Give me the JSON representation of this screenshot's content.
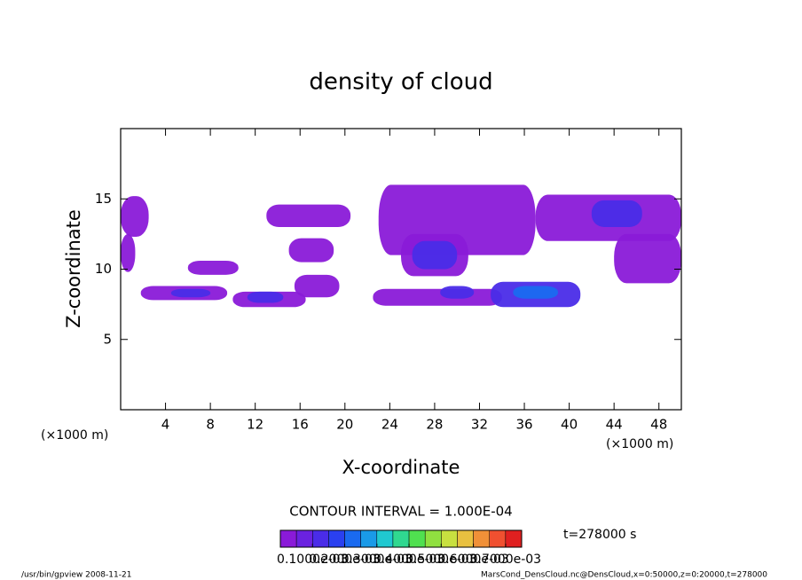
{
  "chart_data": {
    "type": "contour",
    "title": "density of cloud",
    "xlabel": "X-coordinate",
    "ylabel": "Z-coordinate",
    "xunit_left": "(×1000 m)",
    "xunit_right": "(×1000 m)",
    "xlim": [
      0,
      50
    ],
    "xticks": [
      4,
      8,
      12,
      16,
      20,
      24,
      28,
      32,
      36,
      40,
      44,
      48
    ],
    "ylim": [
      0,
      20
    ],
    "yticks": [
      5,
      10,
      15
    ],
    "contour_interval": "CONTOUR INTERVAL = 1.000E-04",
    "time": "t=278000 s",
    "footer_left": "/usr/bin/gpview  2008-11-21",
    "footer_right": "MarsCond_DensCloud.nc@DensCloud,x=0:50000,z=0:20000,t=278000",
    "colorbar_lim": [
      0,
      0.00075
    ],
    "colorbar_colors": [
      "#8a1ad8",
      "#6a22e0",
      "#4a2ce8",
      "#2a40f0",
      "#1a6af0",
      "#1a9ae8",
      "#20c8d0",
      "#30d890",
      "#50e050",
      "#90e040",
      "#c8e040",
      "#e8c040",
      "#f09038",
      "#f05030",
      "#e02020"
    ],
    "colorbar_ticks": [
      {
        "value": 0.0001,
        "label": "0.1000e-03"
      },
      {
        "value": 0.0002,
        "label": "0.2000e-03"
      },
      {
        "value": 0.0003,
        "label": "0.3000e-03"
      },
      {
        "value": 0.0004,
        "label": "0.4000e-03"
      },
      {
        "value": 0.0005,
        "label": "0.5000e-03"
      },
      {
        "value": 0.0006,
        "label": "0.6000e-03"
      },
      {
        "value": 0.0007,
        "label": "0.7000e-03"
      }
    ],
    "regions": [
      {
        "x": [
          0,
          2.5
        ],
        "z": [
          12.3,
          15.2
        ],
        "level": 3e-05
      },
      {
        "x": [
          0,
          1.3
        ],
        "z": [
          9.8,
          12.5
        ],
        "level": 3e-05
      },
      {
        "x": [
          6,
          10.5
        ],
        "z": [
          9.6,
          10.6
        ],
        "level": 3e-05
      },
      {
        "x": [
          1.8,
          9.5
        ],
        "z": [
          7.8,
          8.8
        ],
        "level": 3e-05
      },
      {
        "x": [
          4.5,
          8
        ],
        "z": [
          8,
          8.6
        ],
        "level": 0.00012
      },
      {
        "x": [
          10,
          16.5
        ],
        "z": [
          7.3,
          8.4
        ],
        "level": 3e-05
      },
      {
        "x": [
          11.3,
          14.5
        ],
        "z": [
          7.6,
          8.4
        ],
        "level": 0.00015
      },
      {
        "x": [
          15.5,
          19.5
        ],
        "z": [
          8,
          9.6
        ],
        "level": 3e-05
      },
      {
        "x": [
          13,
          20.5
        ],
        "z": [
          13,
          14.6
        ],
        "level": 3e-05
      },
      {
        "x": [
          15,
          19
        ],
        "z": [
          10.5,
          12.2
        ],
        "level": 3e-05
      },
      {
        "x": [
          22.5,
          34
        ],
        "z": [
          7.4,
          8.6
        ],
        "level": 3e-05
      },
      {
        "x": [
          28.5,
          31.5
        ],
        "z": [
          7.9,
          8.8
        ],
        "level": 0.00012
      },
      {
        "x": [
          23,
          37
        ],
        "z": [
          11,
          16
        ],
        "level": 3e-05
      },
      {
        "x": [
          25,
          31
        ],
        "z": [
          9.5,
          12.5
        ],
        "level": 3e-05
      },
      {
        "x": [
          26,
          30
        ],
        "z": [
          10,
          12
        ],
        "level": 0.00012
      },
      {
        "x": [
          33,
          41
        ],
        "z": [
          7.3,
          9.1
        ],
        "level": 0.00012
      },
      {
        "x": [
          35,
          39
        ],
        "z": [
          7.9,
          8.8
        ],
        "level": 0.0002
      },
      {
        "x": [
          37,
          50
        ],
        "z": [
          12,
          15.3
        ],
        "level": 3e-05
      },
      {
        "x": [
          42,
          46.5
        ],
        "z": [
          13,
          14.9
        ],
        "level": 0.00012
      },
      {
        "x": [
          44,
          50
        ],
        "z": [
          9,
          12.5
        ],
        "level": 3e-05
      }
    ]
  }
}
